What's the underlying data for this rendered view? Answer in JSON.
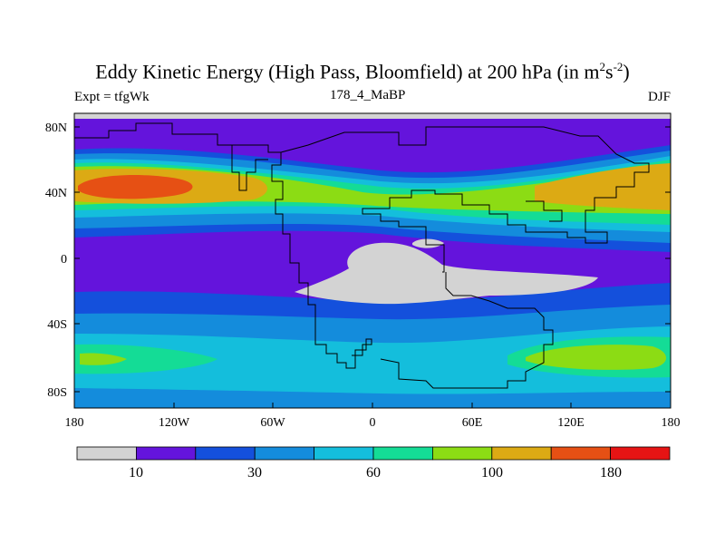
{
  "figure": {
    "title_main": "Eddy Kinetic Energy (High Pass, Bloomfield) at 200 hPa (in m",
    "title_sup1": "2",
    "title_mid": "s",
    "title_sup2": "-2",
    "title_end": ")",
    "left_label": "Expt = tfgWk",
    "center_label": "178_4_MaBP",
    "right_label": "DJF"
  },
  "axes": {
    "y_ticks": [
      "80N",
      "40N",
      "0",
      "40S",
      "80S"
    ],
    "x_ticks": [
      "180",
      "120W",
      "60W",
      "0",
      "60E",
      "120E",
      "180"
    ]
  },
  "colorbar": {
    "colors": [
      "#d3d3d3",
      "#6414dc",
      "#1450dc",
      "#148cdc",
      "#14bedc",
      "#14dc96",
      "#8cdc14",
      "#dcaa14",
      "#e65014",
      "#e61414"
    ],
    "labels": [
      "10",
      "30",
      "60",
      "100",
      "180"
    ]
  },
  "style": {
    "land_outline": "#000000",
    "missing": "#d3d3d3"
  }
}
